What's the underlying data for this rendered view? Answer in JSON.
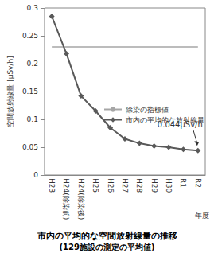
{
  "chart_data": {
    "type": "line",
    "title": "市内の平均的な空間放射線量の推移",
    "subtitle": "(129施設の測定の平均値)",
    "x_label": "年度",
    "y_label": "空間放射線量 [μSv/h]",
    "categories": [
      "H23",
      "H24(除染前)",
      "H24(除染後)",
      "H25",
      "H26",
      "H27",
      "H28",
      "H29",
      "H30",
      "R1",
      "R2"
    ],
    "series": [
      {
        "name": "除染の指標値",
        "color": "#a6a6a6",
        "marker": "none",
        "values": [
          0.23,
          0.23,
          0.23,
          0.23,
          0.23,
          0.23,
          0.23,
          0.23,
          0.23,
          0.23,
          0.23
        ]
      },
      {
        "name": "市内の平均的な放射線量",
        "color": "#595959",
        "marker": "diamond",
        "values": [
          0.285,
          0.218,
          0.142,
          0.115,
          0.085,
          0.065,
          0.057,
          0.052,
          0.05,
          0.046,
          0.044
        ]
      }
    ],
    "ylim": [
      0,
      0.3
    ],
    "yticks": [
      0,
      0.05,
      0.1,
      0.15,
      0.2,
      0.25,
      0.3
    ],
    "grid": false,
    "legend": "lower right",
    "annotations": [
      {
        "text": "0.044μSv/h",
        "x": "R2",
        "y": 0.044
      }
    ]
  }
}
